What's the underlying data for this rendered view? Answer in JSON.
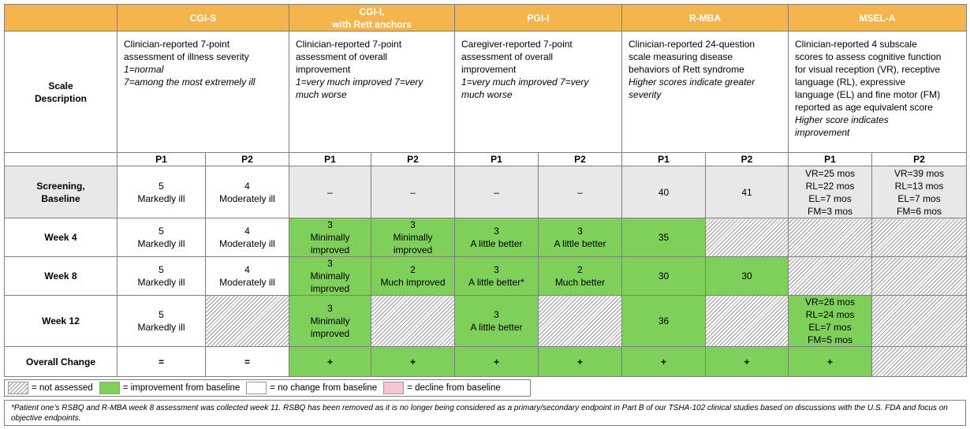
{
  "colors": {
    "header_orange": "#f4b54c",
    "improvement_green": "#7ed05b",
    "decline_pink": "#f6c6cf",
    "baseline_gray": "#e8e8e8"
  },
  "columns": [
    {
      "label": "CGI-S",
      "sub": ""
    },
    {
      "label": "CGI-I,",
      "sub": "with Rett anchors"
    },
    {
      "label": "PGI-I",
      "sub": ""
    },
    {
      "label": "R-MBA",
      "sub": ""
    },
    {
      "label": "MSEL-A",
      "sub": ""
    }
  ],
  "scale_description": {
    "row_label_1": "Scale",
    "row_label_2": "Description",
    "cgi_s": [
      "Clinician-reported 7-point",
      "assessment of illness severity",
      "1=normal",
      "7=among the most extremely ill"
    ],
    "cgi_i": [
      "Clinician-reported 7-point",
      "assessment of overall",
      "improvement",
      "1=very much improved  7=very",
      "much worse"
    ],
    "pgi_i": [
      "Caregiver-reported 7-point",
      "assessment of overall",
      "improvement",
      "1=very much improved  7=very",
      "much worse"
    ],
    "r_mba": [
      "Clinician-reported 24-question",
      "scale measuring disease",
      "behaviors of Rett syndrome",
      "Higher scores indicate greater",
      "severity"
    ],
    "msel_a": [
      "Clinician-reported 4 subscale",
      "scores to assess cognitive function",
      "for visual reception (VR), receptive",
      "language (RL), expressive",
      "language (EL) and fine motor (FM)",
      "reported as age equivalent score",
      "Higher score indicates",
      "improvement"
    ]
  },
  "patients": [
    "P1",
    "P2"
  ],
  "rows": {
    "screening": {
      "label_1": "Screening,",
      "label_2": "Baseline",
      "cgi_s_p1": [
        "5",
        "Markedly ill"
      ],
      "cgi_s_p2": [
        "4",
        "Moderately ill"
      ],
      "cgi_i_p1": "–",
      "cgi_i_p2": "–",
      "pgi_i_p1": "–",
      "pgi_i_p2": "–",
      "r_mba_p1": "40",
      "r_mba_p2": "41",
      "msel_p1": [
        "VR=25 mos",
        "RL=22 mos",
        "EL=7 mos",
        "FM=3 mos"
      ],
      "msel_p2": [
        "VR=39 mos",
        "RL=13 mos",
        "EL=7 mos",
        "FM=6 mos"
      ]
    },
    "week4": {
      "label": "Week 4",
      "cgi_s_p1": [
        "5",
        "Markedly ill"
      ],
      "cgi_s_p2": [
        "4",
        "Moderately ill"
      ],
      "cgi_i_p1": [
        "3",
        "Minimally",
        "improved"
      ],
      "cgi_i_p2": [
        "3",
        "Minimally",
        "improved"
      ],
      "pgi_i_p1": [
        "3",
        "A little better"
      ],
      "pgi_i_p2": [
        "3",
        "A little better"
      ],
      "r_mba_p1": "35"
    },
    "week8": {
      "label": "Week 8",
      "cgi_s_p1": [
        "5",
        "Markedly ill"
      ],
      "cgi_s_p2": [
        "4",
        "Moderately ill"
      ],
      "cgi_i_p1": [
        "3",
        "Minimally",
        "improved"
      ],
      "cgi_i_p2": [
        "2",
        "Much improved"
      ],
      "pgi_i_p1": [
        "3",
        "A little better*"
      ],
      "pgi_i_p2": [
        "2",
        "Much better"
      ],
      "r_mba_p1": "30",
      "r_mba_p2": "30"
    },
    "week12": {
      "label": "Week 12",
      "cgi_s_p1": [
        "5",
        "Markedly ill"
      ],
      "cgi_i_p1": [
        "3",
        "Minimally",
        "improved"
      ],
      "pgi_i_p1": [
        "3",
        "A little better"
      ],
      "r_mba_p1": "36",
      "msel_p1": [
        "VR=26 mos",
        "RL=24 mos",
        "EL=7 mos",
        "FM=5 mos"
      ]
    },
    "overall": {
      "label": "Overall Change",
      "cgi_s_p1": "=",
      "cgi_s_p2": "=",
      "cgi_i_p1": "+",
      "cgi_i_p2": "+",
      "pgi_i_p1": "+",
      "pgi_i_p2": "+",
      "r_mba_p1": "+",
      "r_mba_p2": "+",
      "msel_p1": "+"
    }
  },
  "legend": {
    "not_assessed": "= not assessed",
    "improvement": "= improvement from baseline",
    "no_change": "= no change from baseline",
    "decline": "= decline from baseline"
  },
  "footnote": "*Patient one’s RSBQ and R-MBA week 8 assessment was collected week 11. RSBQ has been removed as it is no longer being considered as a primary/secondary endpoint in Part B of our TSHA-102 clinical studies based on discussions with the U.S. FDA and focus on objective endpoints."
}
